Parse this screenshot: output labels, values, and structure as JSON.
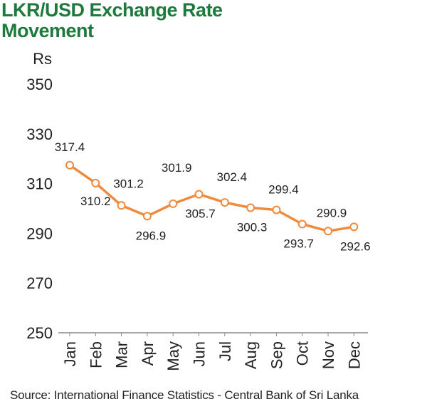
{
  "colors": {
    "title": "#1e7a3c",
    "line": "#f08a3c",
    "axis": "#888888",
    "text": "#222222"
  },
  "chart_data": {
    "type": "line",
    "title": "LKR/USD Exchange Rate Movement",
    "ylabel": "Rs",
    "xlabel": "",
    "categories": [
      "Jan",
      "Feb",
      "Mar",
      "Apr",
      "May",
      "Jun",
      "Jul",
      "Aug",
      "Sep",
      "Oct",
      "Nov",
      "Dec"
    ],
    "series": [
      {
        "values": [
          317.4,
          310.2,
          301.2,
          296.9,
          301.9,
          305.7,
          302.4,
          300.3,
          299.4,
          293.7,
          290.9,
          292.6
        ],
        "labels": [
          "317.4",
          "310.2",
          "301.2",
          "296.9",
          "301.9",
          "305.7",
          "302.4",
          "300.3",
          "299.4",
          "293.7",
          "290.9",
          "292.6"
        ]
      }
    ],
    "ylim": [
      250,
      350
    ],
    "yticks": [
      "250",
      "270",
      "290",
      "310",
      "330",
      "350"
    ],
    "grid": false,
    "legend": "none"
  },
  "source": "Source: International Finance Statistics - Central Bank of Sri Lanka"
}
